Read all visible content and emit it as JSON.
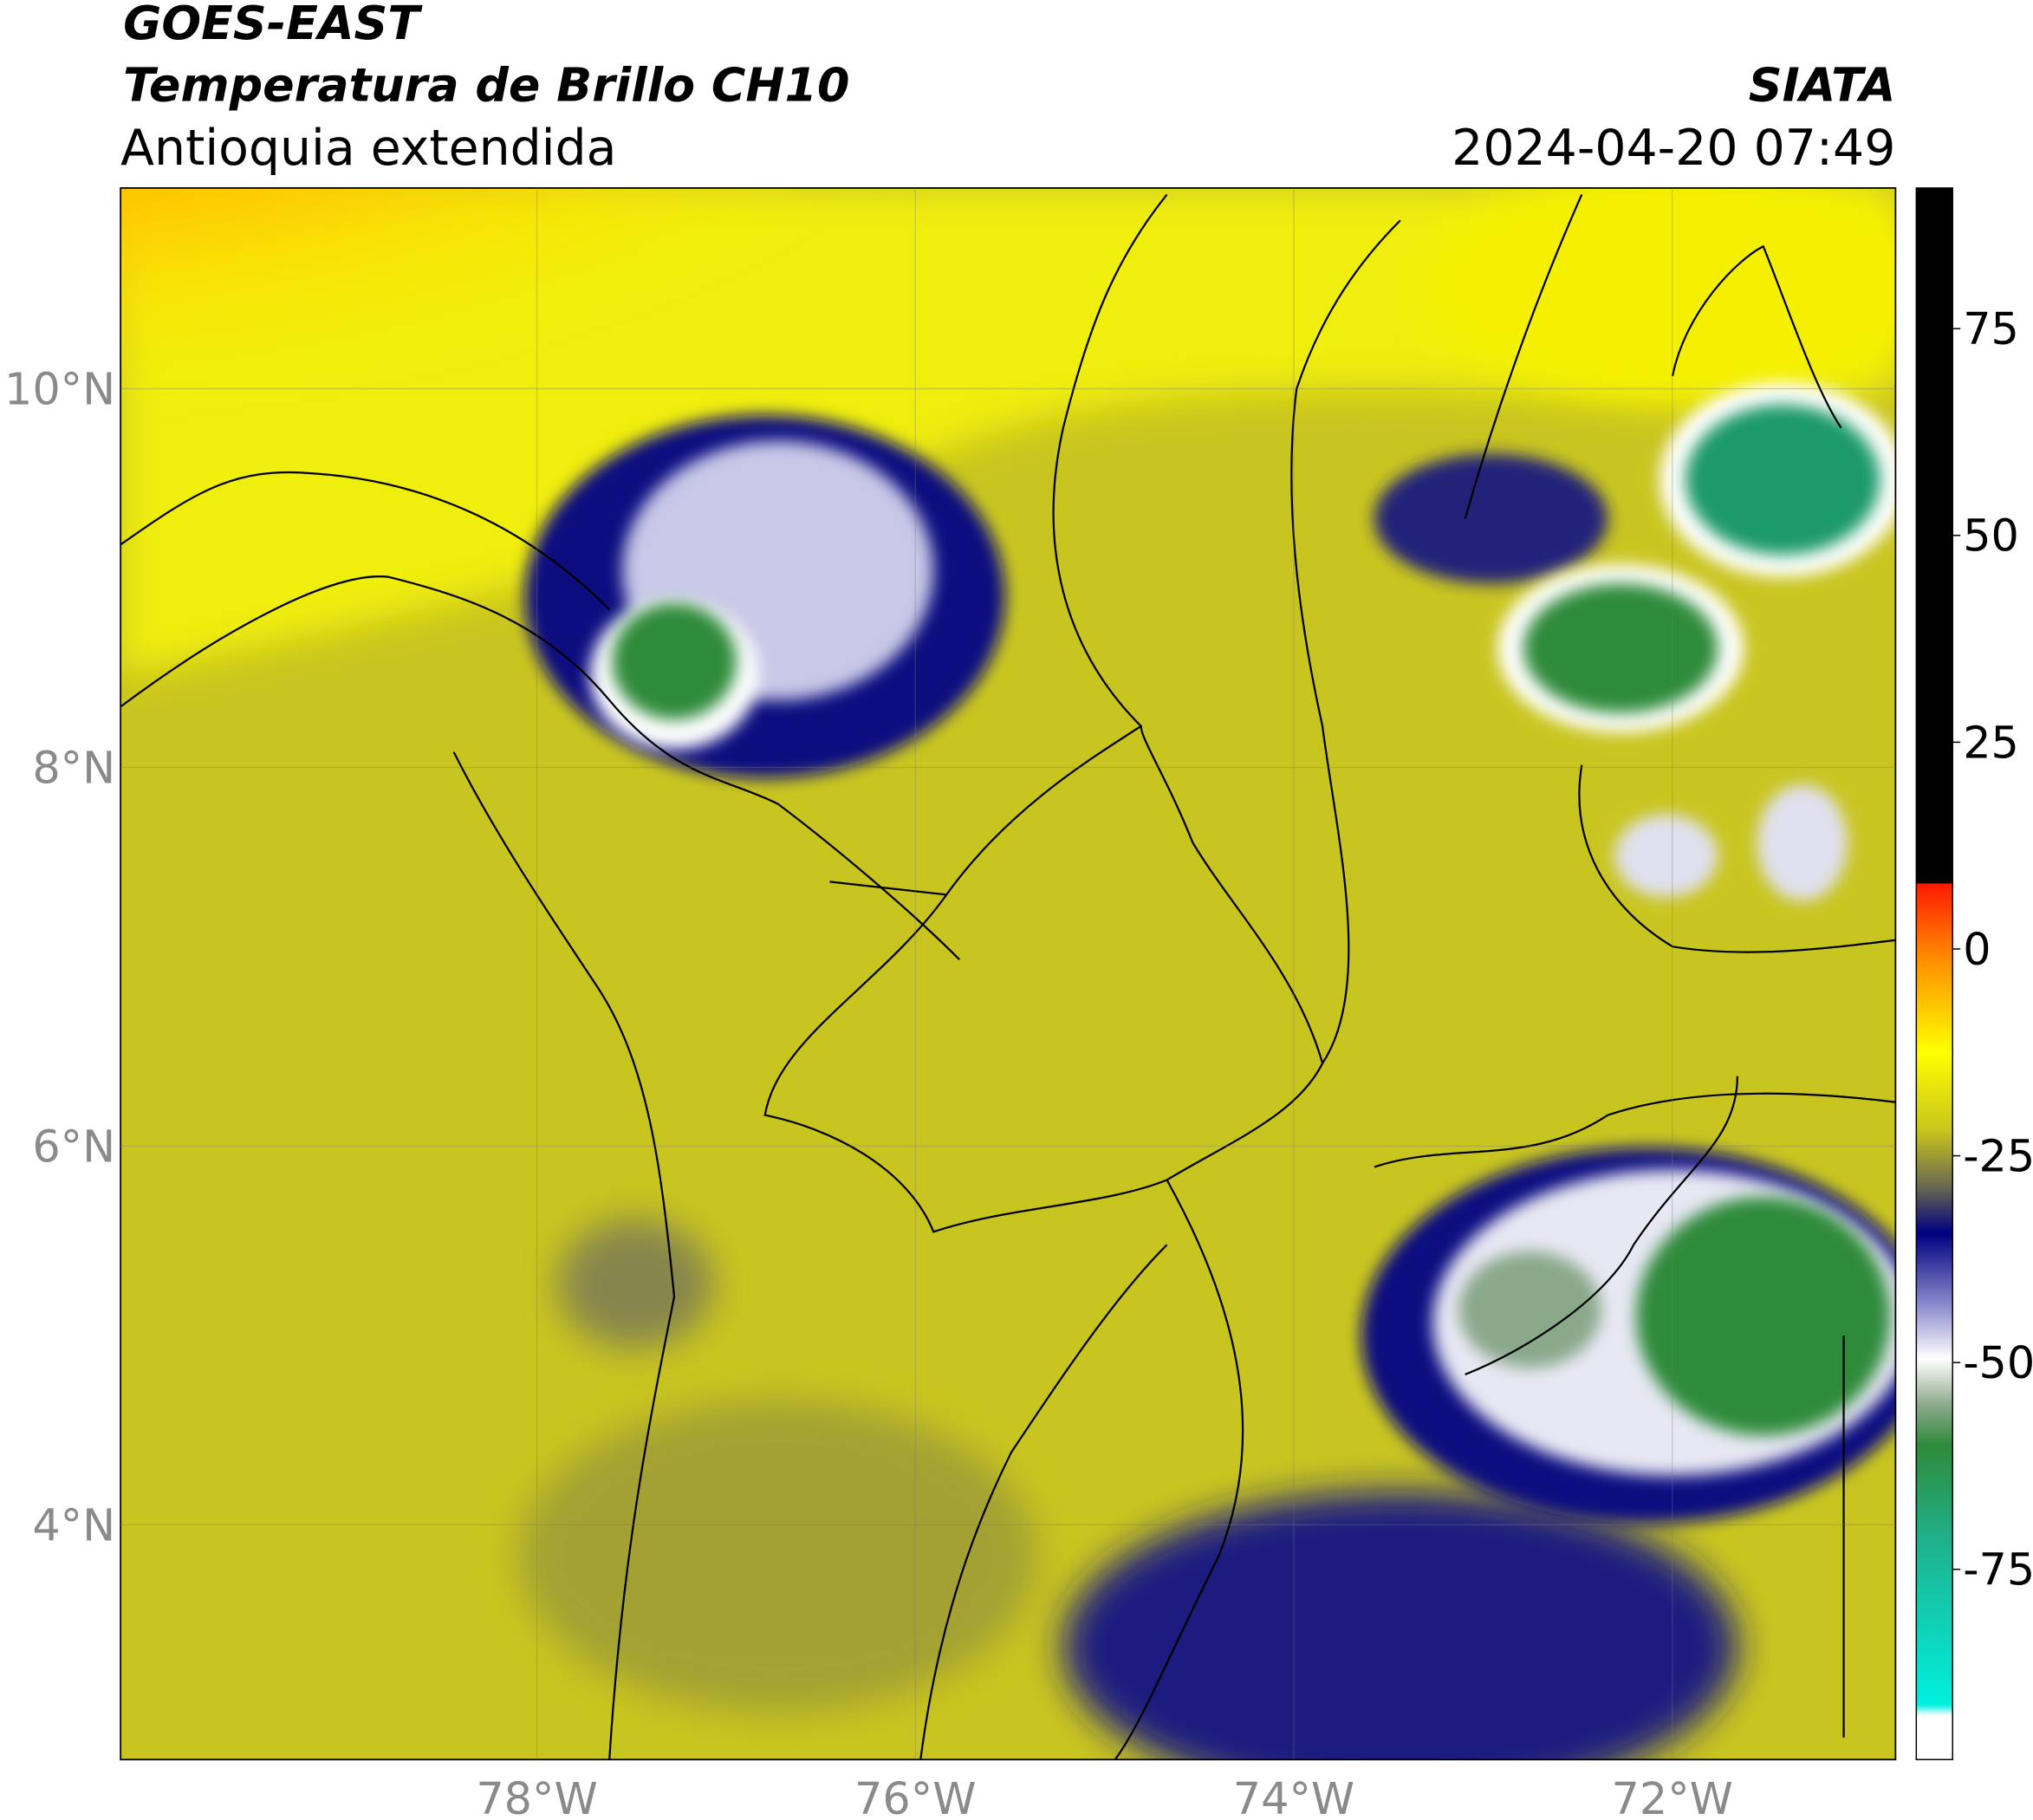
{
  "header": {
    "satellite": "GOES-EAST",
    "product": "Temperatura de Brillo CH10",
    "region": "Antioquia extendida",
    "source": "SIATA",
    "datetime": "2024-04-20 07:49"
  },
  "map": {
    "lonlim": [
      -80.2,
      -70.82
    ],
    "latlim": [
      2.76,
      11.06
    ],
    "xticks": [
      {
        "value": -78,
        "label": "78°W"
      },
      {
        "value": -76,
        "label": "76°W"
      },
      {
        "value": -74,
        "label": "74°W"
      },
      {
        "value": -72,
        "label": "72°W"
      }
    ],
    "yticks": [
      {
        "value": 10,
        "label": "10°N"
      },
      {
        "value": 8,
        "label": "8°N"
      },
      {
        "value": 6,
        "label": "6°N"
      },
      {
        "value": 4,
        "label": "4°N"
      }
    ],
    "grid": true
  },
  "colorbar": {
    "lim": [
      -98,
      92
    ],
    "ticks": [
      75,
      50,
      25,
      0,
      -25,
      -50,
      -75
    ]
  }
}
